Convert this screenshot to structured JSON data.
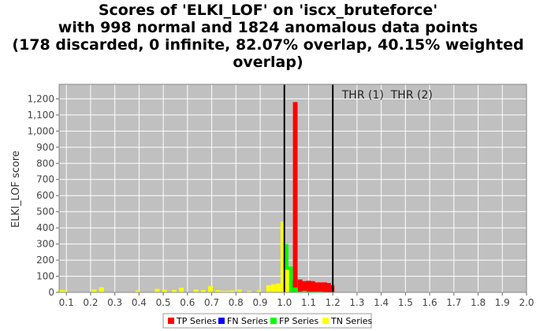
{
  "chart_data": {
    "type": "bar",
    "title": [
      "Scores of 'ELKI_LOF' on 'iscx_bruteforce'",
      "with 998 normal and 1824 anomalous data points",
      "(178 discarded, 0 infinite, 82.07% overlap,  40.15% weighted",
      "overlap)"
    ],
    "ylabel": "ELKI_LOF score",
    "xlabel": "",
    "xlim": [
      0.07,
      2.0
    ],
    "ylim": [
      0,
      1290
    ],
    "x_ticks": [
      "0.1",
      "0.2",
      "0.3",
      "0.4",
      "0.5",
      "0.6",
      "0.7",
      "0.8",
      "0.9",
      "1.0",
      "1.1",
      "1.2",
      "1.3",
      "1.4",
      "1.5",
      "1.6",
      "1.7",
      "1.8",
      "1.9",
      "2.0"
    ],
    "y_ticks": [
      "0",
      "100",
      "200",
      "300",
      "400",
      "500",
      "600",
      "700",
      "800",
      "900",
      "1,000",
      "1,100",
      "1,200"
    ],
    "grid": true,
    "bin_width": 0.0193,
    "thresholds": [
      {
        "x": 1.0,
        "label": "THR (1)"
      },
      {
        "x": 1.2,
        "label": "THR (2)"
      }
    ],
    "series": [
      {
        "name": "TP Series",
        "color": "#ff0000",
        "points": [
          [
            1.029,
            75
          ],
          [
            1.045,
            1180
          ],
          [
            1.065,
            80
          ],
          [
            1.083,
            70
          ],
          [
            1.1,
            72
          ],
          [
            1.117,
            70
          ],
          [
            1.133,
            62
          ],
          [
            1.15,
            62
          ],
          [
            1.167,
            62
          ],
          [
            1.183,
            58
          ],
          [
            1.197,
            45
          ]
        ]
      },
      {
        "name": "FN Series",
        "color": "#0000ff",
        "points": [
          [
            0.988,
            35
          ]
        ]
      },
      {
        "name": "FP Series",
        "color": "#00ff00",
        "points": [
          [
            1.007,
            300
          ],
          [
            1.025,
            160
          ],
          [
            1.045,
            30
          ],
          [
            1.065,
            5
          ],
          [
            1.083,
            10
          ],
          [
            1.1,
            5
          ],
          [
            1.117,
            5
          ],
          [
            1.133,
            5
          ],
          [
            1.15,
            5
          ],
          [
            1.167,
            3
          ]
        ]
      },
      {
        "name": "TN Series",
        "color": "#ffff00",
        "points": [
          [
            0.075,
            15
          ],
          [
            0.095,
            12
          ],
          [
            0.215,
            18
          ],
          [
            0.245,
            32
          ],
          [
            0.395,
            12
          ],
          [
            0.475,
            22
          ],
          [
            0.505,
            16
          ],
          [
            0.545,
            14
          ],
          [
            0.575,
            28
          ],
          [
            0.635,
            18
          ],
          [
            0.665,
            14
          ],
          [
            0.695,
            38
          ],
          [
            0.725,
            14
          ],
          [
            0.745,
            10
          ],
          [
            0.765,
            10
          ],
          [
            0.785,
            12
          ],
          [
            0.815,
            18
          ],
          [
            0.855,
            10
          ],
          [
            0.895,
            12
          ],
          [
            0.935,
            45
          ],
          [
            0.955,
            50
          ],
          [
            0.975,
            55
          ],
          [
            0.994,
            440
          ],
          [
            1.01,
            140
          ]
        ]
      }
    ],
    "legend": {
      "placement": "bottom-center"
    }
  }
}
